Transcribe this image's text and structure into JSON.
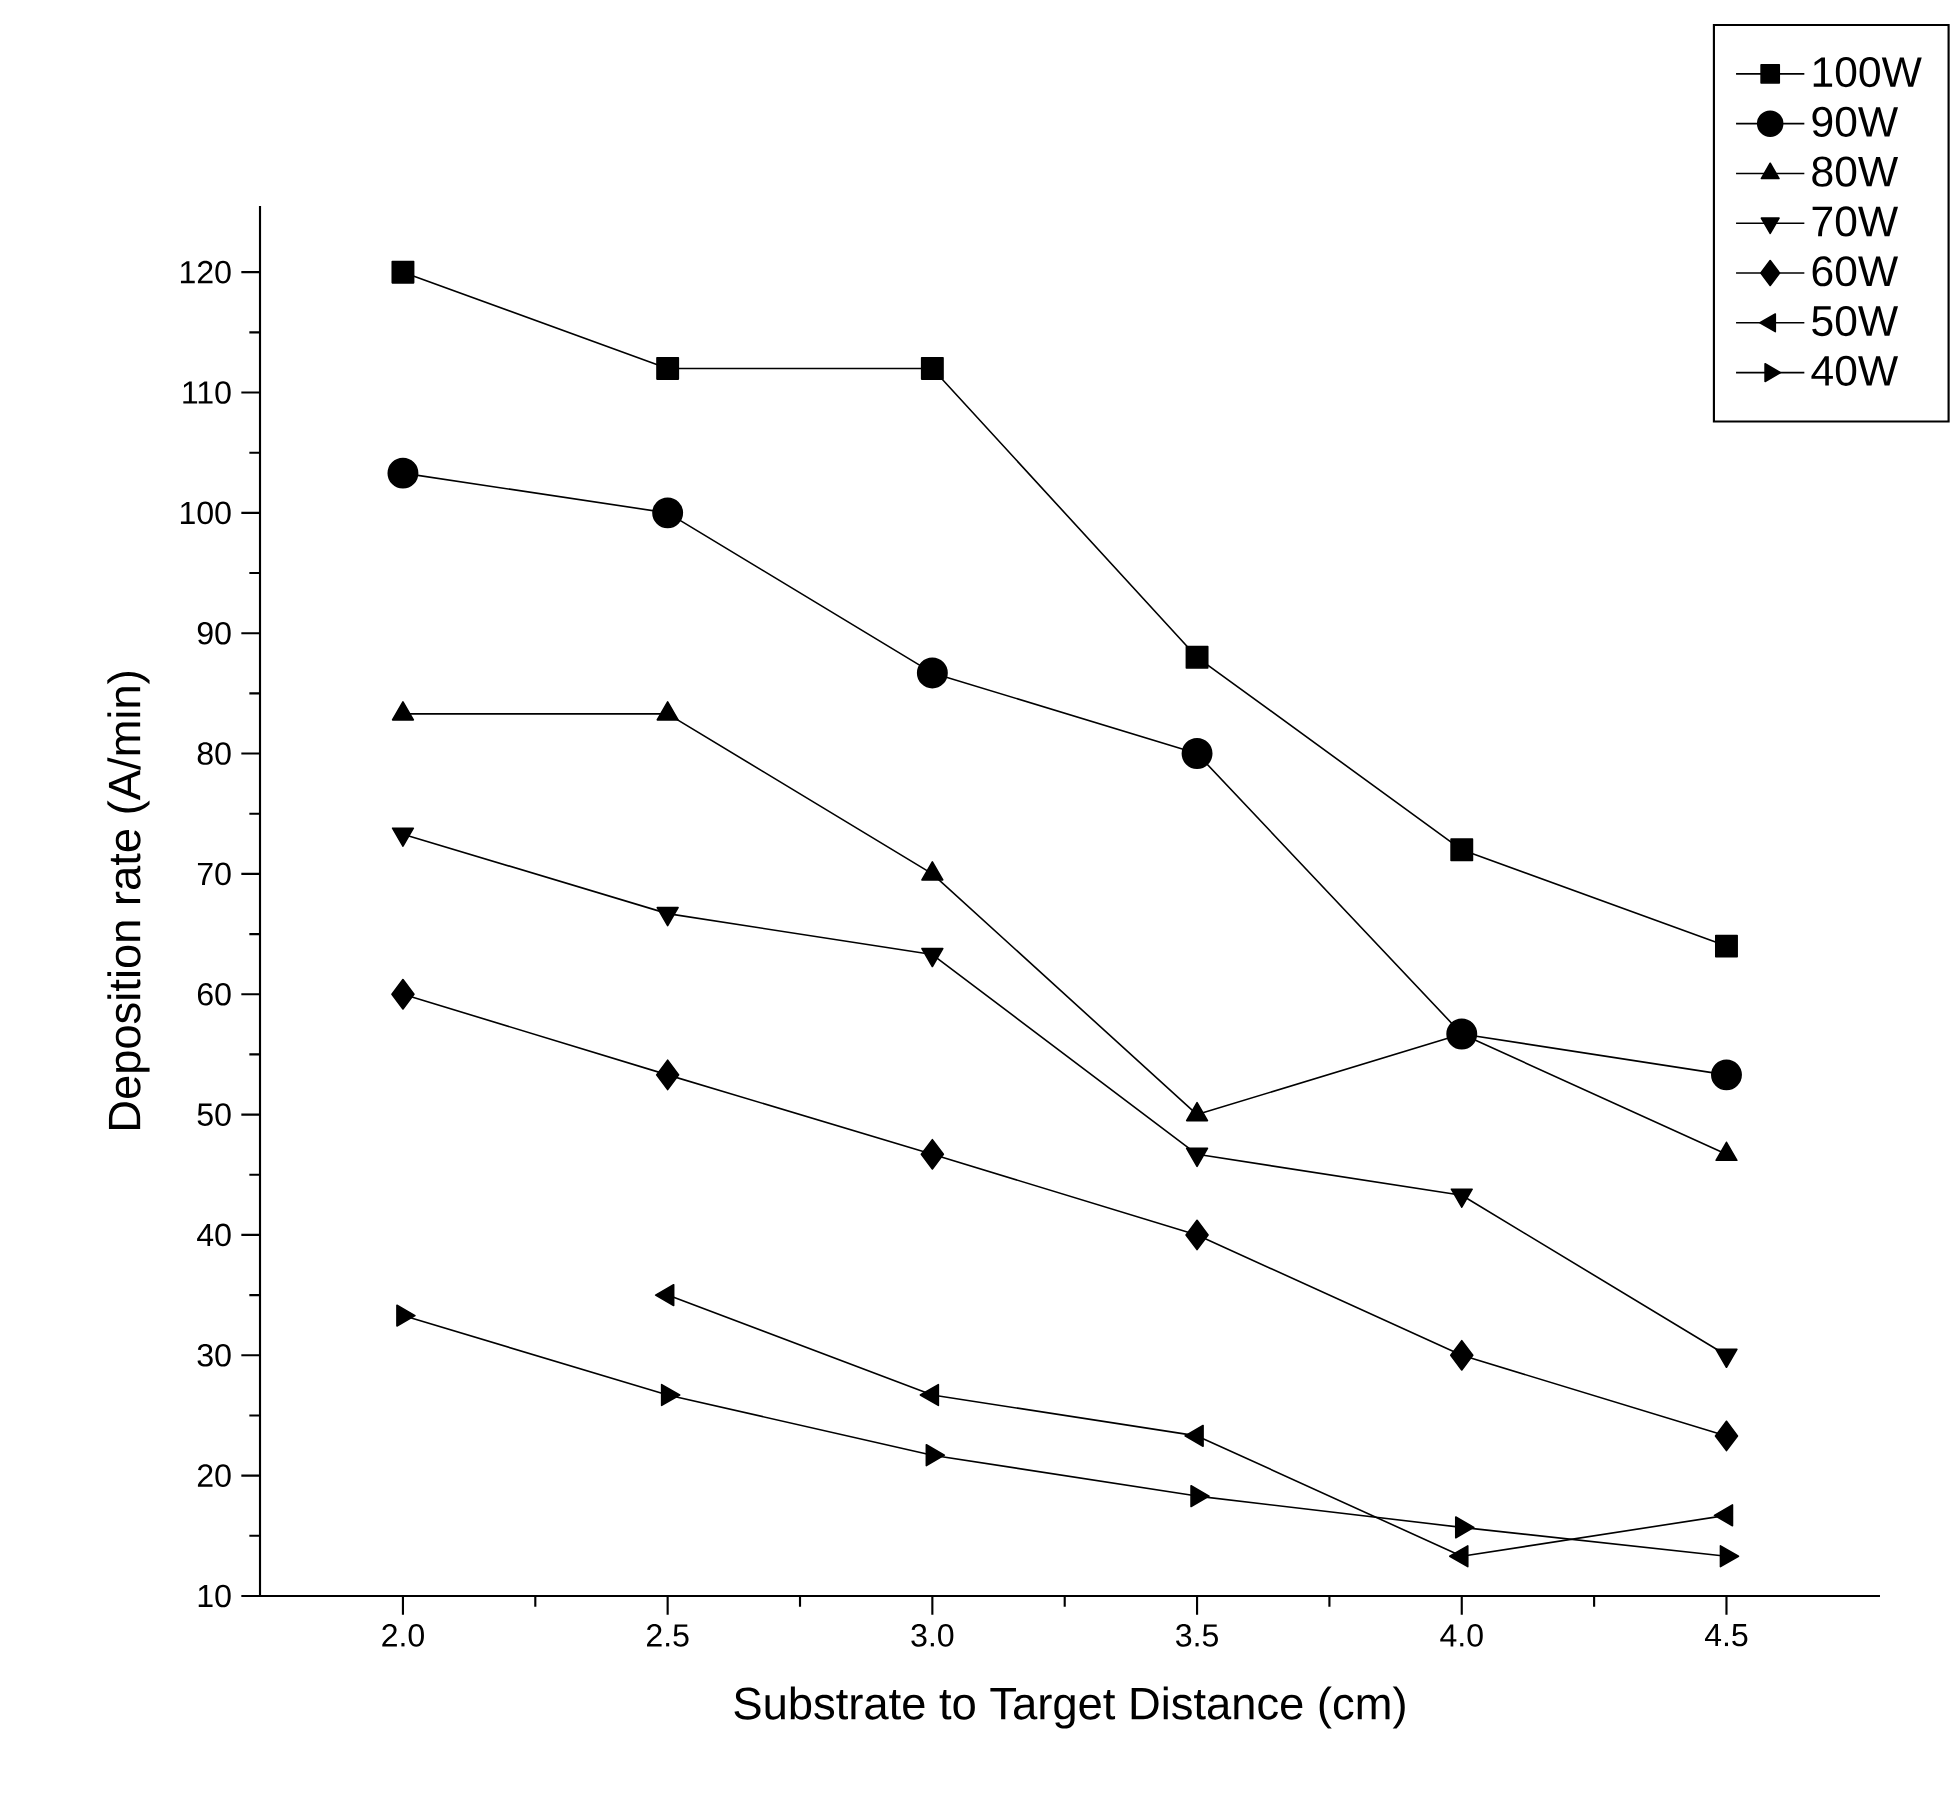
{
  "chart_data": {
    "type": "line",
    "xlabel": "Substrate to Target Distance (cm)",
    "ylabel": "Deposition rate (A/min)",
    "x": [
      2.0,
      2.5,
      3.0,
      3.5,
      4.0,
      4.5
    ],
    "xlim": [
      1.73,
      4.79
    ],
    "ylim": [
      10,
      125.5
    ],
    "xticks": [
      {
        "value": 2.0,
        "label": "2.0"
      },
      {
        "value": 2.5,
        "label": "2.5"
      },
      {
        "value": 3.0,
        "label": "3.0"
      },
      {
        "value": 3.5,
        "label": "3.5"
      },
      {
        "value": 4.0,
        "label": "4.0"
      },
      {
        "value": 4.5,
        "label": "4.5"
      }
    ],
    "yticks": [
      10,
      20,
      30,
      40,
      50,
      60,
      70,
      80,
      90,
      100,
      110,
      120
    ],
    "legend": "top right",
    "grid": false,
    "line_style": "solid",
    "series": [
      {
        "name": "100W",
        "color": "#000000",
        "marker": "square",
        "values": [
          120,
          112,
          112,
          88,
          72,
          64
        ]
      },
      {
        "name": "90W",
        "color": "#000000",
        "marker": "circle",
        "values": [
          103.3,
          100,
          86.7,
          80,
          56.7,
          53.3
        ]
      },
      {
        "name": "80W",
        "color": "#000000",
        "marker": "triangle",
        "values": [
          83.3,
          83.3,
          70,
          50,
          56.7,
          46.7
        ]
      },
      {
        "name": "70W",
        "color": "#000000",
        "marker": "triangle-down",
        "values": [
          73.3,
          66.7,
          63.3,
          46.7,
          43.3,
          30
        ]
      },
      {
        "name": "60W",
        "color": "#000000",
        "marker": "diamond",
        "values": [
          60,
          53.3,
          46.7,
          40,
          30,
          23.3
        ]
      },
      {
        "name": "50W",
        "color": "#000000",
        "marker": "triangle-left",
        "values": [
          null,
          35,
          26.7,
          23.3,
          13.3,
          16.7
        ]
      },
      {
        "name": "40W",
        "color": "#000000",
        "marker": "triangle-right",
        "values": [
          33.3,
          26.7,
          21.7,
          18.3,
          15.7,
          13.3
        ]
      }
    ]
  }
}
